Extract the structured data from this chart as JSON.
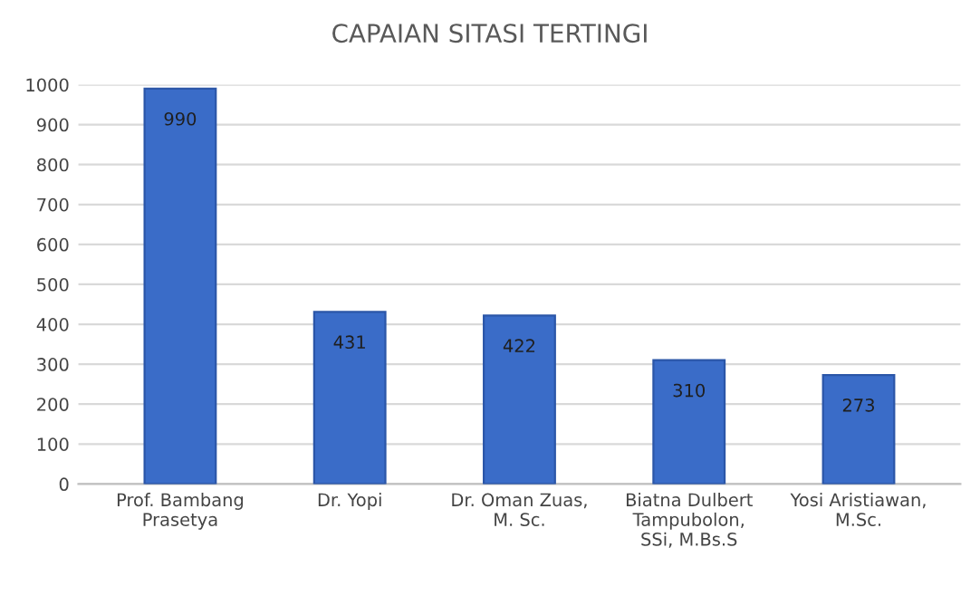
{
  "chart_data": {
    "type": "bar",
    "title": "CAPAIAN SITASI TERTINGI",
    "categories": [
      "Prof. Bambang\nPrasetya",
      "Dr. Yopi",
      "Dr. Oman Zuas,\nM. Sc.",
      "Biatna Dulbert\nTampubolon,\nSSi, M.Bs.S",
      "Yosi Aristiawan,\nM.Sc."
    ],
    "values": [
      990,
      431,
      422,
      310,
      273
    ],
    "color": "#3a6cc8",
    "ylim": [
      0,
      1000
    ],
    "yticks": [
      0,
      100,
      200,
      300,
      400,
      500,
      600,
      700,
      800,
      900,
      1000
    ],
    "grid": "y",
    "data_labels": true
  }
}
